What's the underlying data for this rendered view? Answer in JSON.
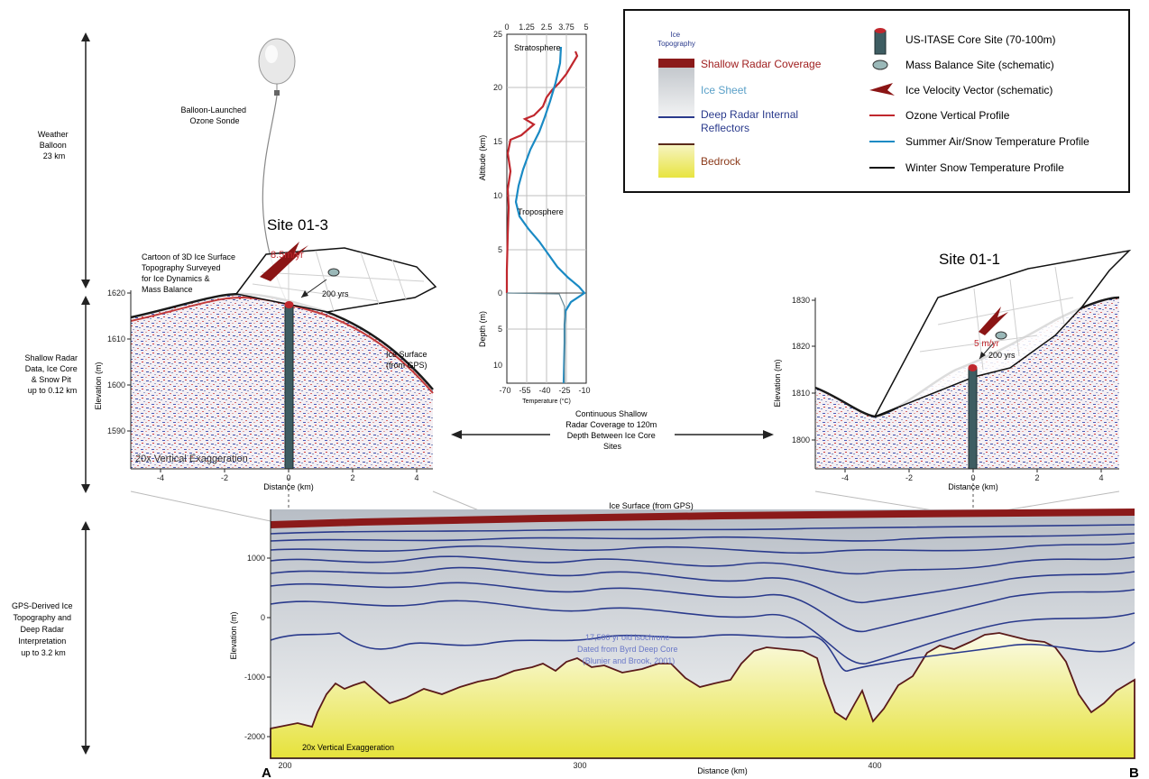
{
  "left_labels": {
    "weather": [
      "Weather",
      "Balloon",
      "23 km"
    ],
    "shallow": [
      "Shallow Radar",
      "Data, Ice Core",
      "& Snow Pit",
      "up to 0.12 km"
    ],
    "gps": [
      "GPS-Derived Ice",
      "Topography and",
      "Deep Radar",
      "Interpretation",
      "up to 3.2 km"
    ]
  },
  "balloon_label": [
    "Balloon-Launched",
    "Ozone Sonde"
  ],
  "cartoon_label": [
    "Cartoon of 3D Ice Surface",
    "Topography Surveyed",
    "for Ice Dynamics &",
    "Mass Balance"
  ],
  "site_left": {
    "title": "Site 01-3",
    "velocity": "8.5m/yr",
    "years": "200 yrs",
    "ice_surface": [
      "Ice Surface",
      "(from GPS)"
    ],
    "exaggeration": "20x Vertical Exaggeration",
    "y_label": "Elevation (m)",
    "x_label": "Distance (km)",
    "y_ticks": [
      "1620",
      "1610",
      "1600",
      "1590"
    ],
    "x_ticks": [
      "-4",
      "-2",
      "0",
      "2",
      "4"
    ]
  },
  "site_right": {
    "title": "Site 01-1",
    "velocity": "5 m/yr",
    "years": "200 yrs",
    "y_label": "Elevation (m)",
    "x_label": "Distance (km)",
    "y_ticks": [
      "1830",
      "1820",
      "1810",
      "1800"
    ],
    "x_ticks": [
      "-4",
      "-2",
      "0",
      "2",
      "4"
    ]
  },
  "profile": {
    "top_ticks": [
      "0",
      "1.25",
      "2.5",
      "3.75",
      "5"
    ],
    "alt_ticks": [
      "25",
      "20",
      "15",
      "10",
      "5",
      "0"
    ],
    "depth_ticks": [
      "5",
      "10"
    ],
    "bottom_ticks": [
      "-70",
      "-55",
      "-40",
      "-25",
      "-10"
    ],
    "alt_label": "Altitude (km)",
    "depth_label": "Depth (m)",
    "temp_label": "Temperature (°C)",
    "stratosphere": "Stratosphere",
    "troposphere": "Troposphere"
  },
  "continuous_label": [
    "Continuous Shallow",
    "Radar Coverage to 120m",
    "Depth Between Ice Core",
    "Sites"
  ],
  "legend": {
    "topo_title": [
      "Ice",
      "Topography"
    ],
    "shallow": "Shallow Radar Coverage",
    "ice_sheet": "Ice Sheet",
    "deep": [
      "Deep Radar Internal",
      "Reflectors"
    ],
    "bedrock": "Bedrock",
    "core": "US-ITASE Core Site (70-100m)",
    "mass": "Mass Balance Site (schematic)",
    "velocity": "Ice Velocity Vector (schematic)",
    "ozone": "Ozone Vertical Profile",
    "summer": "Summer Air/Snow Temperature Profile",
    "winter": "Winter Snow Temperature Profile",
    "colors": {
      "ozone": "#c0272d",
      "summer": "#1a8ac4",
      "winter": "#111111",
      "shallow": "#8b1a1a",
      "bedrock": "#e8e440",
      "deep": "#2a3a8c"
    }
  },
  "bottom": {
    "ice_surface": "Ice Surface (from GPS)",
    "isochrone": [
      "17,500 yr old isochrone",
      "Dated from Byrd Deep Core",
      "(Blunier and Brook, 2001)"
    ],
    "exaggeration": "20x Vertical Exaggeration",
    "y_label": "Elevation (m)",
    "x_label": "Distance (km)",
    "y_ticks": [
      "1000",
      "0",
      "-1000",
      "-2000"
    ],
    "x_ticks": [
      "200",
      "300",
      "400"
    ],
    "point_a": "A",
    "point_b": "B"
  }
}
